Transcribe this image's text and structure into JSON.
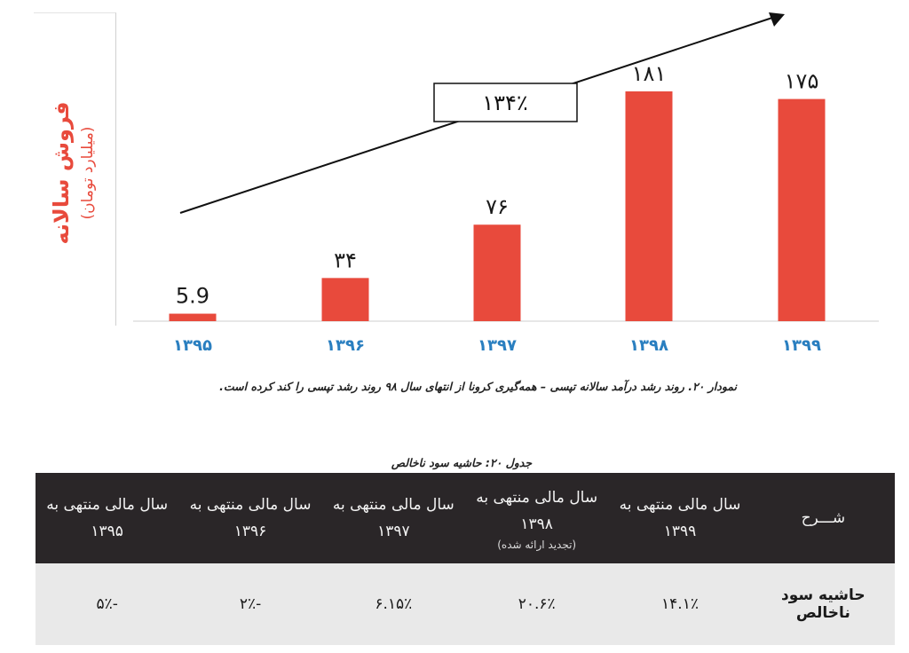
{
  "chart_data": {
    "type": "bar",
    "ylabel": "فروش سالانه",
    "ylabel_sub": "(میلیارد تومان)",
    "categories": [
      "۱۳۹۵",
      "۱۳۹۶",
      "۱۳۹۷",
      "۱۳۹۸",
      "۱۳۹۹"
    ],
    "values": [
      5.9,
      34,
      76,
      181,
      175
    ],
    "value_labels": [
      "5.9",
      "۳۴",
      "۷۶",
      "۱۸۱",
      "۱۷۵"
    ],
    "ylim": [
      0,
      181
    ],
    "growth_annotation": "۱۳۴٪",
    "bar_color": "#e84a3c",
    "category_color": "#2a7fc0",
    "grid": false,
    "legend": "none"
  },
  "caption": "نمودار ۲۰. روند رشد درآمد سالانه تپسی – همه‌گیری کرونا از انتهای سال ۹۸ روند رشد تپسی را کند کرده است.",
  "table": {
    "title": "جدول ۲۰: حاشیه سود ناخالص",
    "headers": [
      {
        "main": "شـــرح",
        "sub": ""
      },
      {
        "main": "سال مالی منتهی به ۱۳۹۹",
        "sub": ""
      },
      {
        "main": "سال مالی منتهی به ۱۳۹۸",
        "sub": "(تجدید ارائه شده)"
      },
      {
        "main": "سال مالی منتهی به ۱۳۹۷",
        "sub": ""
      },
      {
        "main": "سال مالی منتهی به ۱۳۹۶",
        "sub": ""
      },
      {
        "main": "سال مالی منتهی به ۱۳۹۵",
        "sub": ""
      }
    ],
    "row": {
      "label": "حاشیه سود ناخالص",
      "values": [
        "۱۴.۱٪",
        "۲۰.۶٪",
        "۶.۱۵٪",
        "-۲٪",
        "-۵٪"
      ]
    }
  }
}
